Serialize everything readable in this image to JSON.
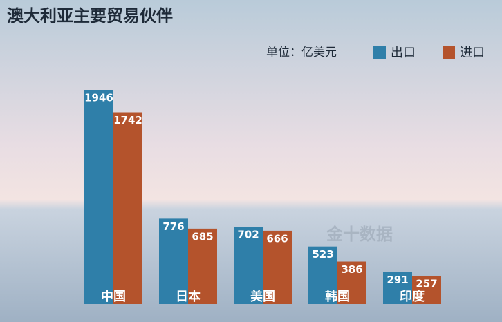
{
  "chart_data": {
    "type": "bar",
    "title": "澳大利亚主要贸易伙伴",
    "unit": "单位：亿美元",
    "watermark": "金十数据",
    "categories": [
      "中国",
      "日本",
      "美国",
      "韩国",
      "印度"
    ],
    "series": [
      {
        "name": "出口",
        "color": "#2f7fa9",
        "values": [
          1946,
          776,
          702,
          523,
          291
        ]
      },
      {
        "name": "进口",
        "color": "#b4532c",
        "values": [
          1742,
          685,
          666,
          386,
          257
        ]
      }
    ]
  }
}
